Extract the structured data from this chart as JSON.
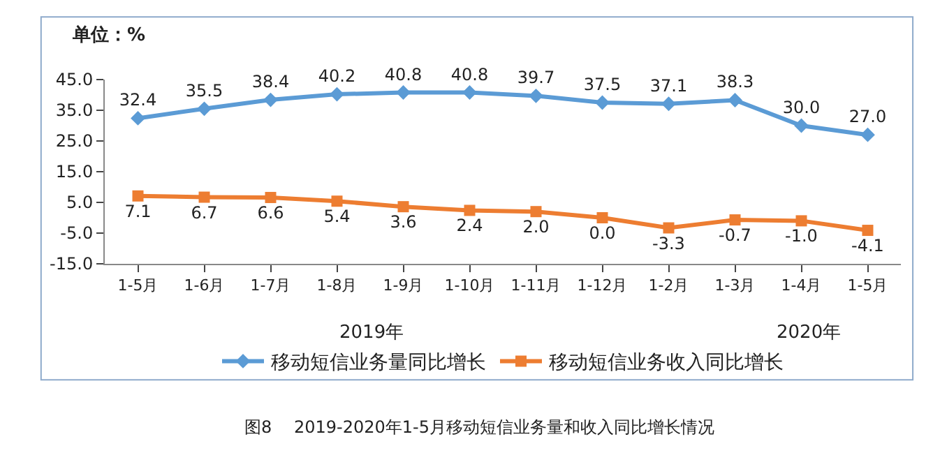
{
  "chart_data": {
    "type": "line",
    "ylabel": "单位：%",
    "categories": [
      "1-5月",
      "1-6月",
      "1-7月",
      "1-8月",
      "1-9月",
      "1-10月",
      "1-11月",
      "1-12月",
      "1-2月",
      "1-3月",
      "1-4月",
      "1-5月"
    ],
    "series": [
      {
        "name": "移动短信业务量同比增长",
        "color": "#5b9bd5",
        "marker": "diamond",
        "values": [
          32.4,
          35.5,
          38.4,
          40.2,
          40.8,
          40.8,
          39.7,
          37.5,
          37.1,
          38.3,
          30.0,
          27.0
        ],
        "value_labels": [
          "32.4",
          "35.5",
          "38.4",
          "40.2",
          "40.8",
          "40.8",
          "39.7",
          "37.5",
          "37.1",
          "38.3",
          "30.0",
          "27.0"
        ]
      },
      {
        "name": "移动短信业务收入同比增长",
        "color": "#ed7d31",
        "marker": "square",
        "values": [
          7.1,
          6.7,
          6.6,
          5.4,
          3.6,
          2.4,
          2.0,
          0.0,
          -3.3,
          -0.7,
          -1.0,
          -4.1
        ],
        "value_labels": [
          "7.1",
          "6.7",
          "6.6",
          "5.4",
          "3.6",
          "2.4",
          "2.0",
          "0.0",
          "-3.3",
          "-0.7",
          "-1.0",
          "-4.1"
        ]
      }
    ],
    "ylim": [
      -15,
      45
    ],
    "yticks": [
      {
        "value": -15,
        "label": "-15.0"
      },
      {
        "value": -5,
        "label": "-5.0"
      },
      {
        "value": 5,
        "label": "5.0"
      },
      {
        "value": 15,
        "label": "15.0"
      },
      {
        "value": 25,
        "label": "25.0"
      },
      {
        "value": 35,
        "label": "35.0"
      },
      {
        "value": 45,
        "label": "45.0"
      }
    ],
    "legend": "bottom",
    "line_style": "solid",
    "annotations": [
      "2019年",
      "2020年",
      "图8　 2019-2020年1-5月移动短信业务量和收入同比增长情况"
    ]
  }
}
